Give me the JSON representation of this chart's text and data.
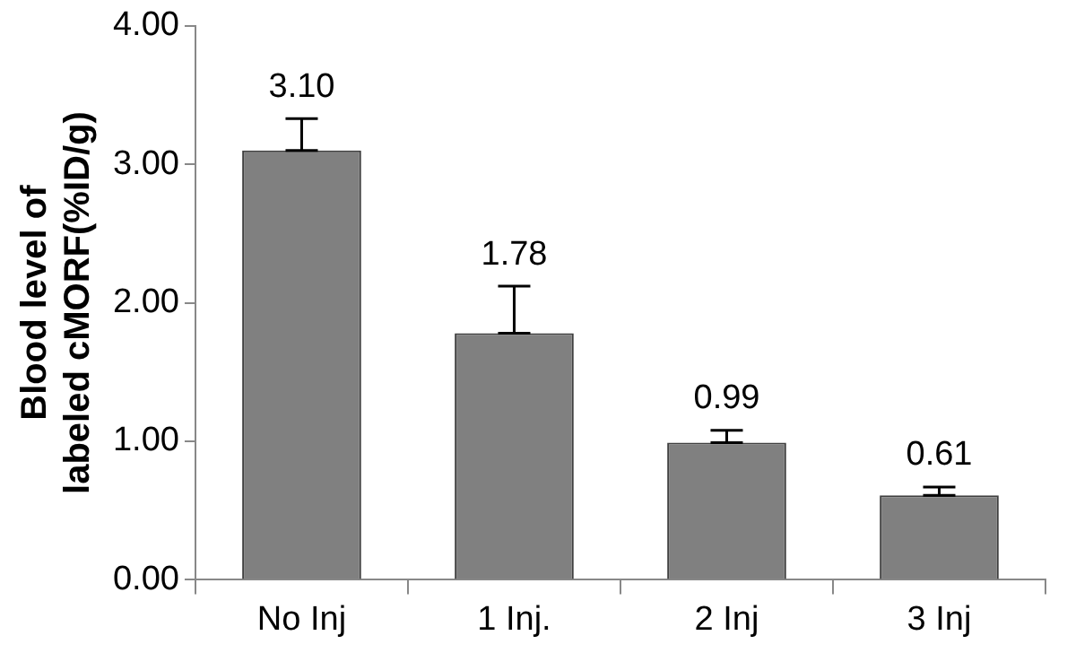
{
  "chart_data": {
    "type": "bar",
    "ylabel": "Blood level of\nlabeled cMORF(%ID/g)",
    "categories": [
      "No Inj",
      "1 Inj.",
      "2 Inj",
      "3 Inj"
    ],
    "values": [
      3.1,
      1.78,
      0.99,
      0.61
    ],
    "value_labels": [
      "3.10",
      "1.78",
      "0.99",
      "0.61"
    ],
    "errors": [
      [
        3.1,
        3.33
      ],
      [
        1.78,
        2.12
      ],
      [
        0.99,
        1.08
      ],
      [
        0.61,
        0.67
      ]
    ],
    "color": "#808080",
    "ylim": [
      0,
      4
    ],
    "yticks": [
      {
        "value": 0,
        "label": "0.00"
      },
      {
        "value": 1,
        "label": "1.00"
      },
      {
        "value": 2,
        "label": "2.00"
      },
      {
        "value": 3,
        "label": "3.00"
      },
      {
        "value": 4,
        "label": "4.00"
      }
    ],
    "grid": false,
    "legend": false
  }
}
